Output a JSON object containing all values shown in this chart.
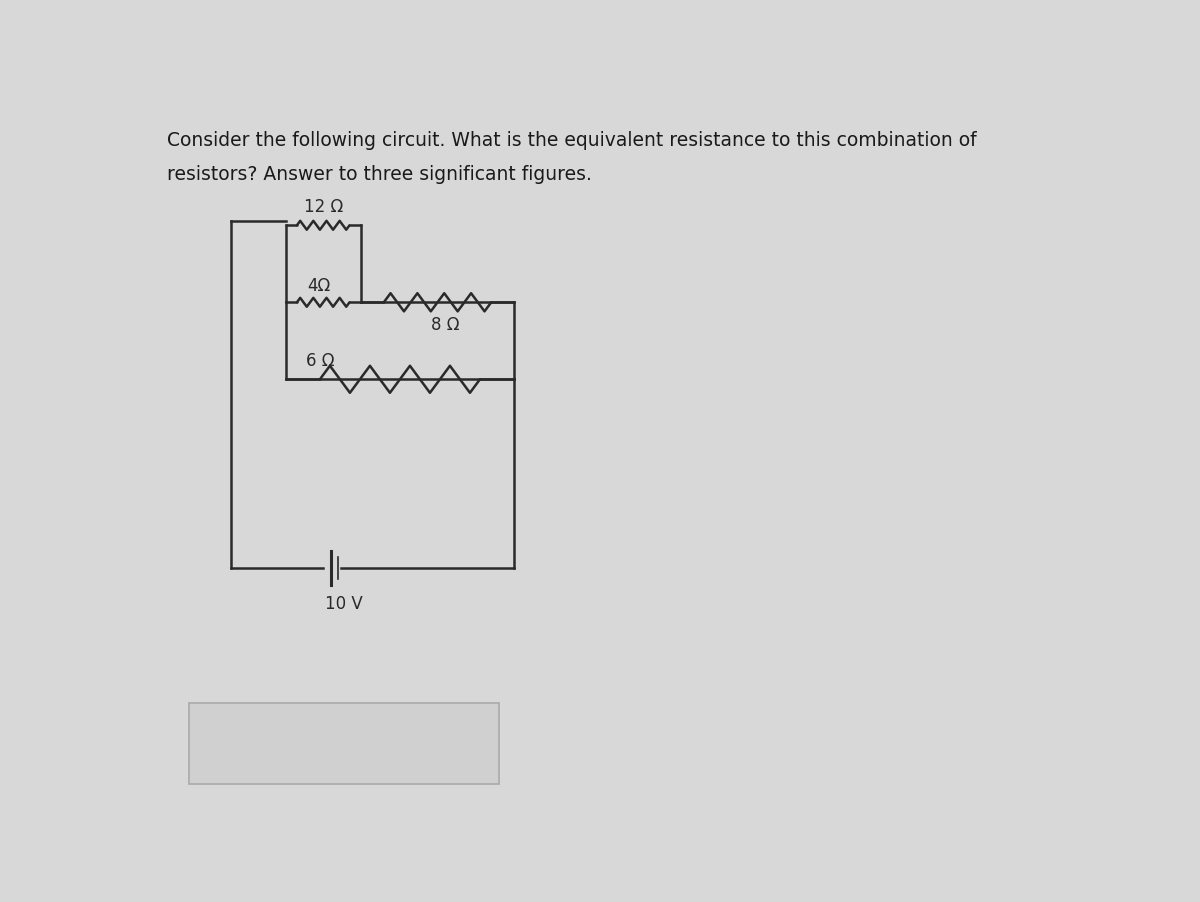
{
  "title_line1": "Consider the following circuit. What is the equivalent resistance to this combination of",
  "title_line2": "resistors? Answer to three significant figures.",
  "title_fontsize": 13.5,
  "title_color": "#1a1a1a",
  "circuit_color": "#2a2a2a",
  "bg_color": "#d8d8d8",
  "resistor_12_label": "12 Ω",
  "resistor_4_label": "4Ω",
  "resistor_8_label": "8 Ω",
  "resistor_6_label": "6 Ω",
  "battery_label": "10 V",
  "label_fontsize": 12,
  "answer_box_color": "#cccccc"
}
